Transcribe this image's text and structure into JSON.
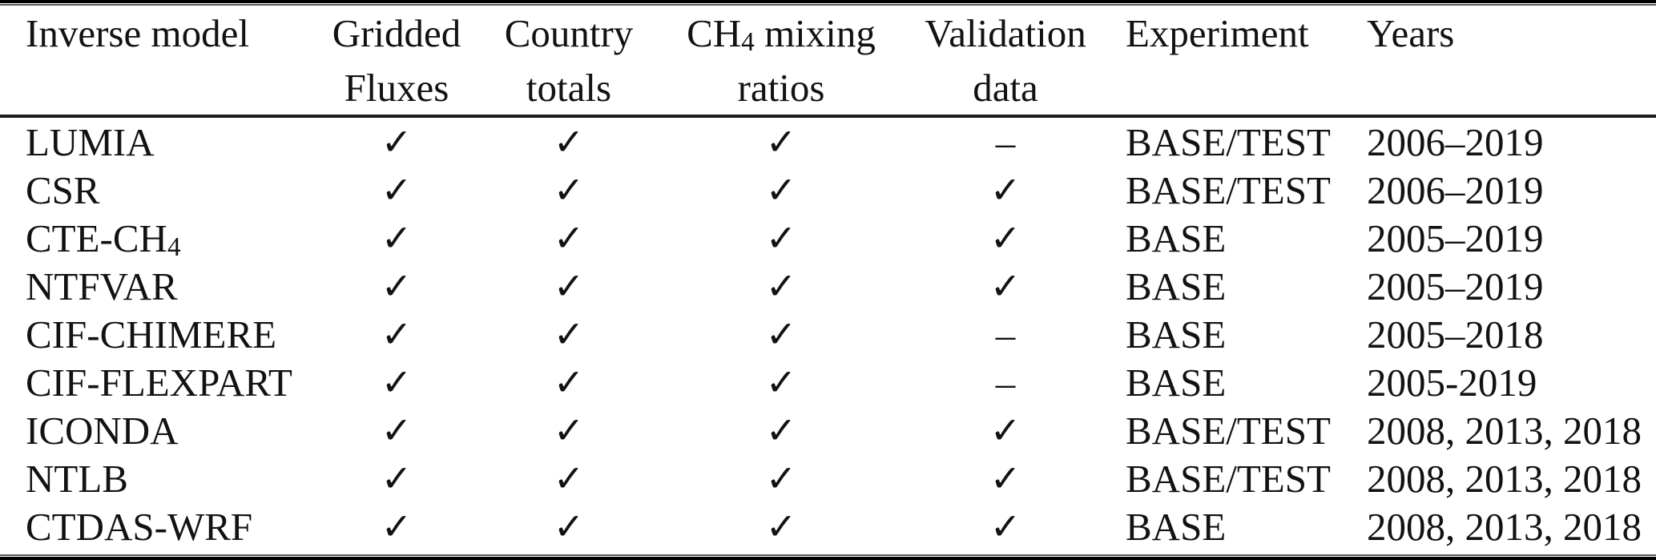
{
  "table": {
    "header": {
      "col1": "Inverse model",
      "col2_line1": "Gridded",
      "col2_line2": "Fluxes",
      "col3_line1": "Country",
      "col3_line2": "totals",
      "col4_pre": "CH",
      "col4_sub": "4",
      "col4_post": " mixing",
      "col4_line2": "ratios",
      "col5_line1": "Validation",
      "col5_line2": "data",
      "col6": "Experiment",
      "col7": "Years"
    },
    "icons": {
      "check": "✓",
      "dash": "–"
    },
    "rows": [
      {
        "model": "LUMIA",
        "model_sub": "",
        "gridded": "✓",
        "country": "✓",
        "mixing": "✓",
        "validation": "–",
        "experiment": "BASE/TEST",
        "years": "2006–2019"
      },
      {
        "model": "CSR",
        "model_sub": "",
        "gridded": "✓",
        "country": "✓",
        "mixing": "✓",
        "validation": "✓",
        "experiment": "BASE/TEST",
        "years": "2006–2019"
      },
      {
        "model": "CTE-CH",
        "model_sub": "4",
        "gridded": "✓",
        "country": "✓",
        "mixing": "✓",
        "validation": "✓",
        "experiment": "BASE",
        "years": "2005–2019"
      },
      {
        "model": "NTFVAR",
        "model_sub": "",
        "gridded": "✓",
        "country": "✓",
        "mixing": "✓",
        "validation": "✓",
        "experiment": "BASE",
        "years": "2005–2019"
      },
      {
        "model": "CIF-CHIMERE",
        "model_sub": "",
        "gridded": "✓",
        "country": "✓",
        "mixing": "✓",
        "validation": "–",
        "experiment": "BASE",
        "years": "2005–2018"
      },
      {
        "model": "CIF-FLEXPART",
        "model_sub": "",
        "gridded": "✓",
        "country": "✓",
        "mixing": "✓",
        "validation": "–",
        "experiment": "BASE",
        "years": "2005-2019"
      },
      {
        "model": "ICONDA",
        "model_sub": "",
        "gridded": "✓",
        "country": "✓",
        "mixing": "✓",
        "validation": "✓",
        "experiment": "BASE/TEST",
        "years": "2008, 2013, 2018"
      },
      {
        "model": "NTLB",
        "model_sub": "",
        "gridded": "✓",
        "country": "✓",
        "mixing": "✓",
        "validation": "✓",
        "experiment": "BASE/TEST",
        "years": "2008, 2013, 2018"
      },
      {
        "model": "CTDAS-WRF",
        "model_sub": "",
        "gridded": "✓",
        "country": "✓",
        "mixing": "✓",
        "validation": "✓",
        "experiment": "BASE",
        "years": "2008, 2013, 2018"
      }
    ]
  }
}
